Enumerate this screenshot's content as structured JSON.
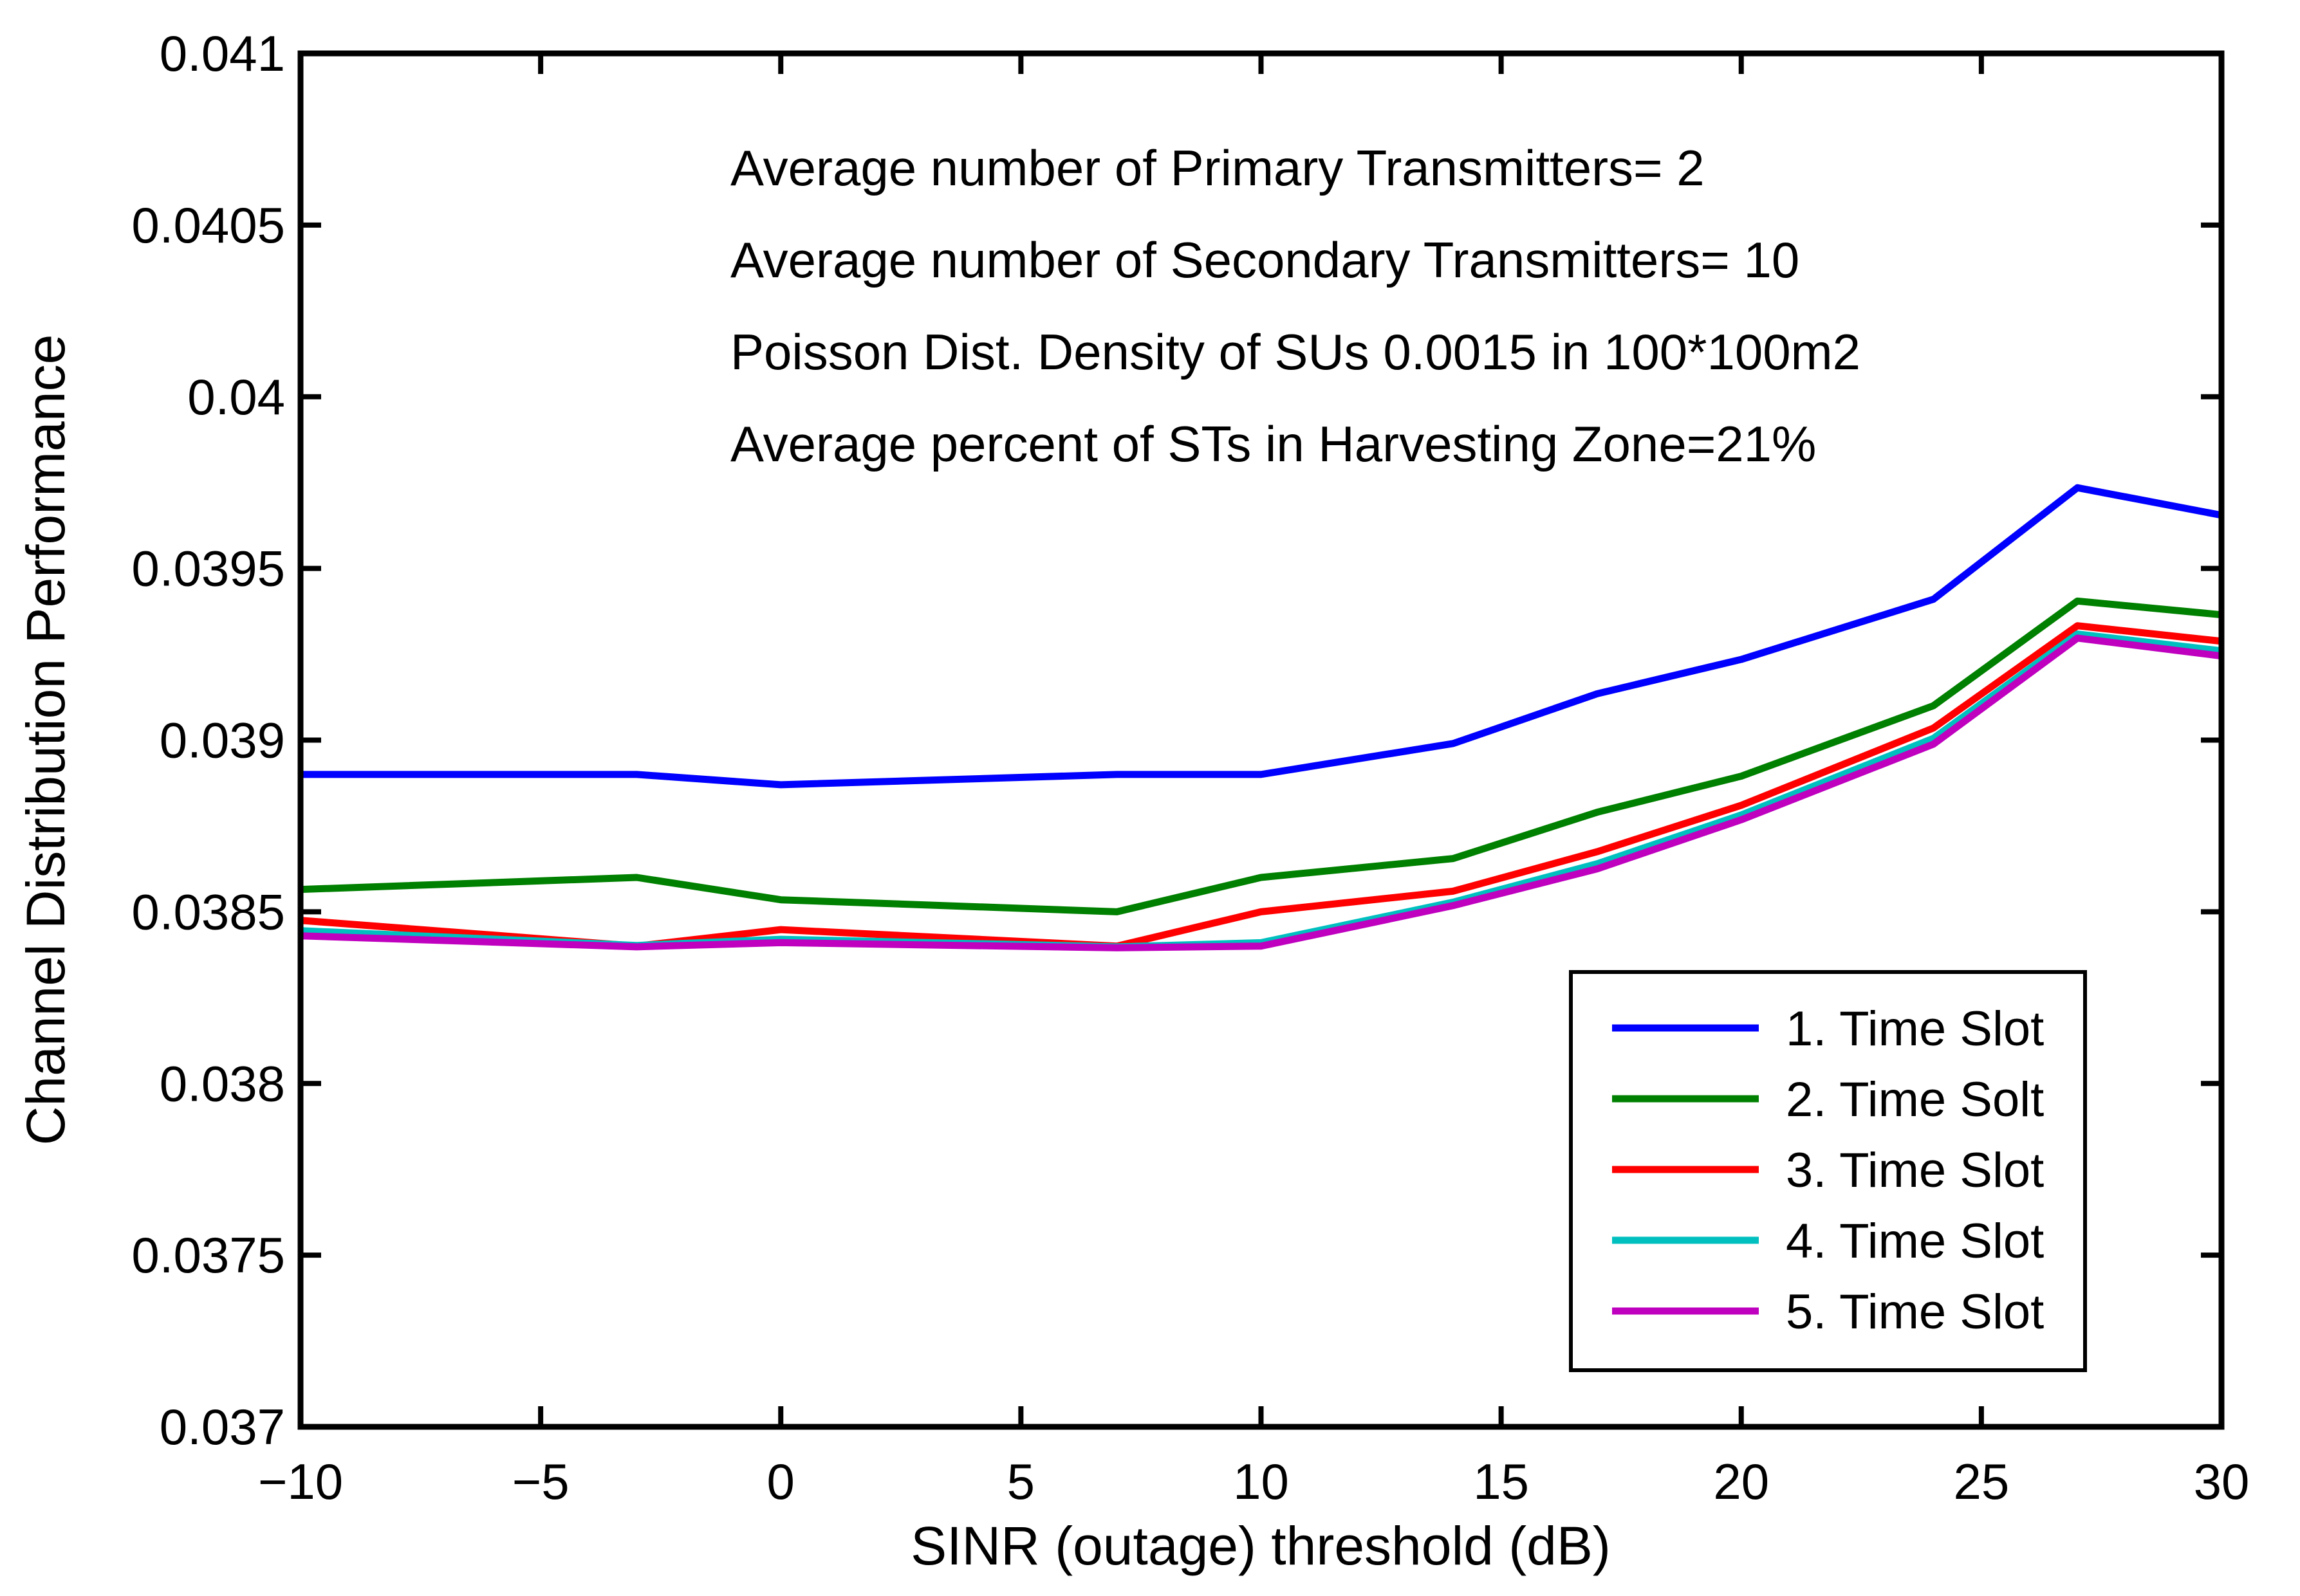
{
  "figure": {
    "background": "#ffffff",
    "axis_color": "#000000",
    "text_color": "#000000"
  },
  "chart_data": {
    "type": "line",
    "title": "",
    "xlabel": "SINR (outage) threshold (dB)",
    "ylabel": "Channel Distribution Performance",
    "xlim": [
      -10,
      30
    ],
    "ylim": [
      0.037,
      0.041
    ],
    "grid": false,
    "legend_position": "lower-right-inside",
    "xticks": {
      "values": [
        -10,
        -5,
        0,
        5,
        10,
        15,
        20,
        25,
        30
      ],
      "labels": [
        "−10",
        "−5",
        "0",
        "5",
        "10",
        "15",
        "20",
        "25",
        "30"
      ]
    },
    "yticks": {
      "values": [
        0.037,
        0.0375,
        0.038,
        0.0385,
        0.039,
        0.0395,
        0.04,
        0.0405,
        0.041
      ],
      "labels": [
        "0.037",
        "0.0375",
        "0.038",
        "0.0385",
        "0.039",
        "0.0395",
        "0.04",
        "0.0405",
        "0.041"
      ]
    },
    "x": [
      -10,
      -3,
      0,
      7,
      10,
      14,
      17,
      20,
      24,
      27,
      30
    ],
    "series": [
      {
        "name": "1. Time Slot",
        "color": "#0000FF",
        "values": [
          0.0389,
          0.0389,
          0.03887,
          0.0389,
          0.0389,
          0.03899,
          0.039135,
          0.039235,
          0.03941,
          0.039735,
          0.039655
        ]
      },
      {
        "name": "2. Time Solt",
        "color": "#008000",
        "values": [
          0.038565,
          0.0386,
          0.038535,
          0.0385,
          0.0386,
          0.038655,
          0.03879,
          0.038895,
          0.0391,
          0.039405,
          0.039365
        ]
      },
      {
        "name": "3. Time Slot",
        "color": "#FF0000",
        "values": [
          0.038475,
          0.0384,
          0.038448,
          0.0384,
          0.0385,
          0.03856,
          0.038675,
          0.03881,
          0.039035,
          0.039333,
          0.039288
        ]
      },
      {
        "name": "4. Time Slot",
        "color": "#00BFBF",
        "values": [
          0.038445,
          0.038402,
          0.03842,
          0.038398,
          0.03841,
          0.038528,
          0.03864,
          0.038782,
          0.039005,
          0.039309,
          0.03926
        ]
      },
      {
        "name": "5. Time Slot",
        "color": "#BF00BF",
        "values": [
          0.03843,
          0.038398,
          0.03841,
          0.038395,
          0.0384,
          0.038518,
          0.038625,
          0.038768,
          0.038988,
          0.039297,
          0.039245
        ]
      }
    ],
    "annotations": [
      "Average number of Primary Transmitters= 2",
      "Average number of Secondary Transmitters= 10",
      "Poisson Dist. Density of SUs 0.0015 in 100*100m2",
      "Average percent of STs in Harvesting Zone=21%"
    ]
  }
}
